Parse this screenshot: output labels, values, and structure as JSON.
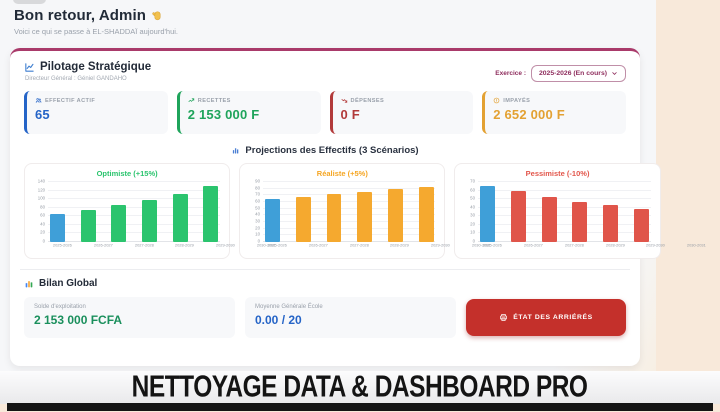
{
  "header": {
    "greeting": "Bon retour, Admin",
    "subtitle": "Voici ce qui se passe à EL-SHADDAÏ aujourd'hui."
  },
  "panel": {
    "title": "Pilotage Stratégique",
    "subtitle": "Directeur Général : Géniel GANDAHO",
    "exercice_label": "Exercice :",
    "exercice_value": "2025-2026 (En cours)"
  },
  "stats": [
    {
      "label": "EFFECTIF ACTIF",
      "value": "65",
      "color": "#2564c7",
      "icon": "users-icon"
    },
    {
      "label": "RECETTES",
      "value": "2 153 000 F",
      "color": "#1fa45b",
      "icon": "trend-up-icon"
    },
    {
      "label": "DÉPENSES",
      "value": "0 F",
      "color": "#b23a3a",
      "icon": "trend-down-icon"
    },
    {
      "label": "IMPAYÉS",
      "value": "2 652 000 F",
      "color": "#e3a132",
      "icon": "alert-icon"
    }
  ],
  "projections_title": "Projections des Effectifs (3 Scénarios)",
  "chart_data": [
    {
      "type": "bar",
      "title": "Optimiste (+15%)",
      "categories": [
        "2025-2026",
        "2026-2027",
        "2027-2028",
        "2028-2029",
        "2029-2030",
        "2030-2031"
      ],
      "values": [
        65,
        75,
        86,
        99,
        113,
        130
      ],
      "ylim": [
        0,
        140
      ],
      "ytick_step": 20,
      "grid": true,
      "legend": "none",
      "colors": {
        "title": "#2bc46e",
        "bars": "#2bc46e",
        "first_bar": "#3f9fd8"
      }
    },
    {
      "type": "bar",
      "title": "Réaliste (+5%)",
      "categories": [
        "2025-2026",
        "2026-2027",
        "2027-2028",
        "2028-2029",
        "2029-2030",
        "2030-2031"
      ],
      "values": [
        65,
        68,
        72,
        75,
        79,
        83
      ],
      "ylim": [
        0,
        90
      ],
      "ytick_step": 10,
      "grid": true,
      "legend": "none",
      "colors": {
        "title": "#f5a623",
        "bars": "#f5a92f",
        "first_bar": "#3f9fd8"
      }
    },
    {
      "type": "bar",
      "title": "Pessimiste (-10%)",
      "categories": [
        "2025-2026",
        "2026-2027",
        "2027-2028",
        "2028-2029",
        "2029-2030",
        "2030-2031"
      ],
      "values": [
        65,
        59,
        53,
        47,
        43,
        38
      ],
      "ylim": [
        0,
        70
      ],
      "ytick_step": 10,
      "grid": true,
      "legend": "none",
      "colors": {
        "title": "#e2574c",
        "bars": "#e0554a",
        "first_bar": "#3f9fd8"
      }
    }
  ],
  "bilan": {
    "title": "Bilan Global",
    "items": [
      {
        "label": "Solde d'exploitation",
        "value": "2 153 000 FCFA",
        "color": "#1a8f5c"
      },
      {
        "label": "Moyenne Générale École",
        "value": "0.00 / 20",
        "color": "#2564c7"
      }
    ],
    "button_label": "ÉTAT DES ARRIÉRÉS"
  },
  "footer": {
    "title": "NETTOYAGE DATA & DASHBOARD PRO"
  },
  "colors": {
    "accent": "#a93a6a",
    "button_red": "#c4302b",
    "page_bg": "#f8e9da",
    "dash_bg": "#f6f7f9"
  }
}
